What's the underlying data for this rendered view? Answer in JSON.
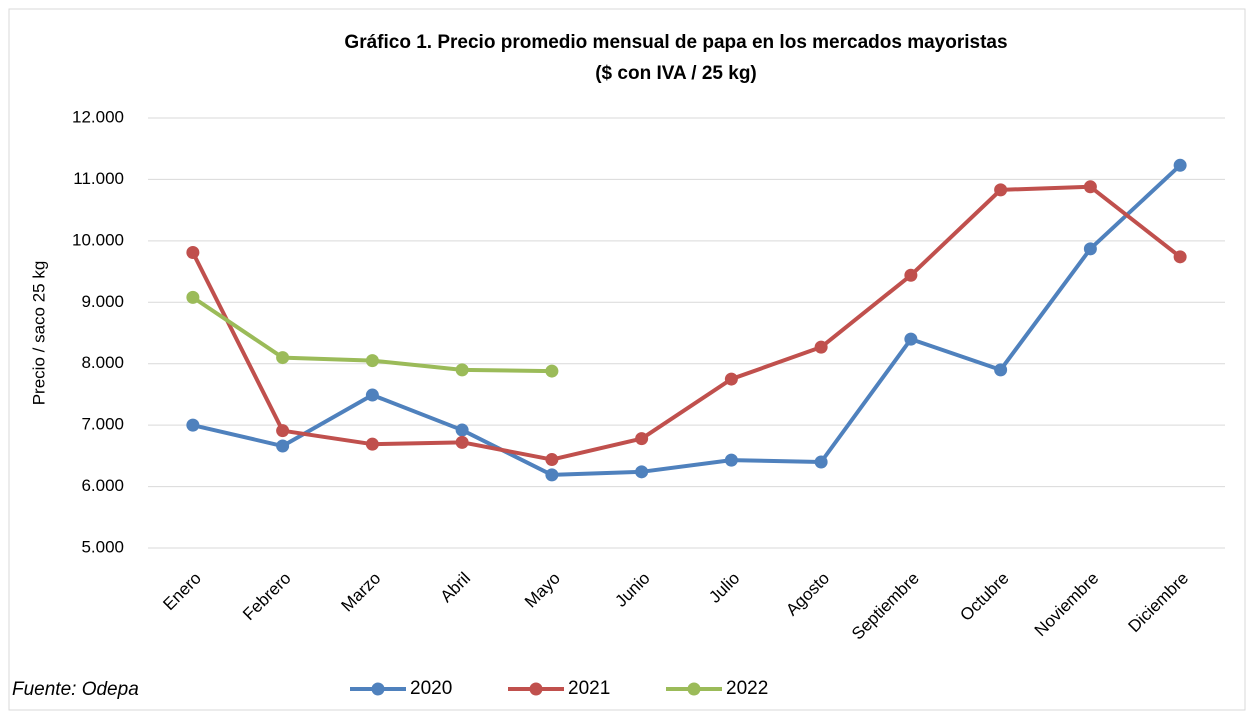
{
  "chart_data": {
    "type": "line",
    "title": "Gráfico 1. Precio promedio mensual de papa en los mercados mayoristas",
    "subtitle": "($ con IVA / 25 kg)",
    "y_label": "Precio / saco 25 kg",
    "source": "Fuente: Odepa",
    "categories": [
      "Enero",
      "Febrero",
      "Marzo",
      "Abril",
      "Mayo",
      "Junio",
      "Julio",
      "Agosto",
      "Septiembre",
      "Octubre",
      "Noviembre",
      "Diciembre"
    ],
    "series": [
      {
        "name": "2020",
        "color": "#4f81bd",
        "values": [
          7000,
          6660,
          7490,
          6920,
          6190,
          6240,
          6430,
          6400,
          8400,
          7900,
          9870,
          11230
        ]
      },
      {
        "name": "2021",
        "color": "#c0504d",
        "values": [
          9810,
          6910,
          6690,
          6720,
          6440,
          6780,
          7750,
          8270,
          9440,
          10830,
          10880,
          9740
        ]
      },
      {
        "name": "2022",
        "color": "#9bbb59",
        "values": [
          9080,
          8100,
          8050,
          7900,
          7880,
          null,
          null,
          null,
          null,
          null,
          null,
          null
        ]
      }
    ],
    "ylim": [
      5000,
      12000
    ],
    "yticks": [
      {
        "value": 5000,
        "label": "5.000"
      },
      {
        "value": 6000,
        "label": "6.000"
      },
      {
        "value": 7000,
        "label": "7.000"
      },
      {
        "value": 8000,
        "label": "8.000"
      },
      {
        "value": 9000,
        "label": "9.000"
      },
      {
        "value": 10000,
        "label": "10.000"
      },
      {
        "value": 11000,
        "label": "11.000"
      },
      {
        "value": 12000,
        "label": "12.000"
      }
    ],
    "grid": true,
    "legend": "bottom"
  }
}
